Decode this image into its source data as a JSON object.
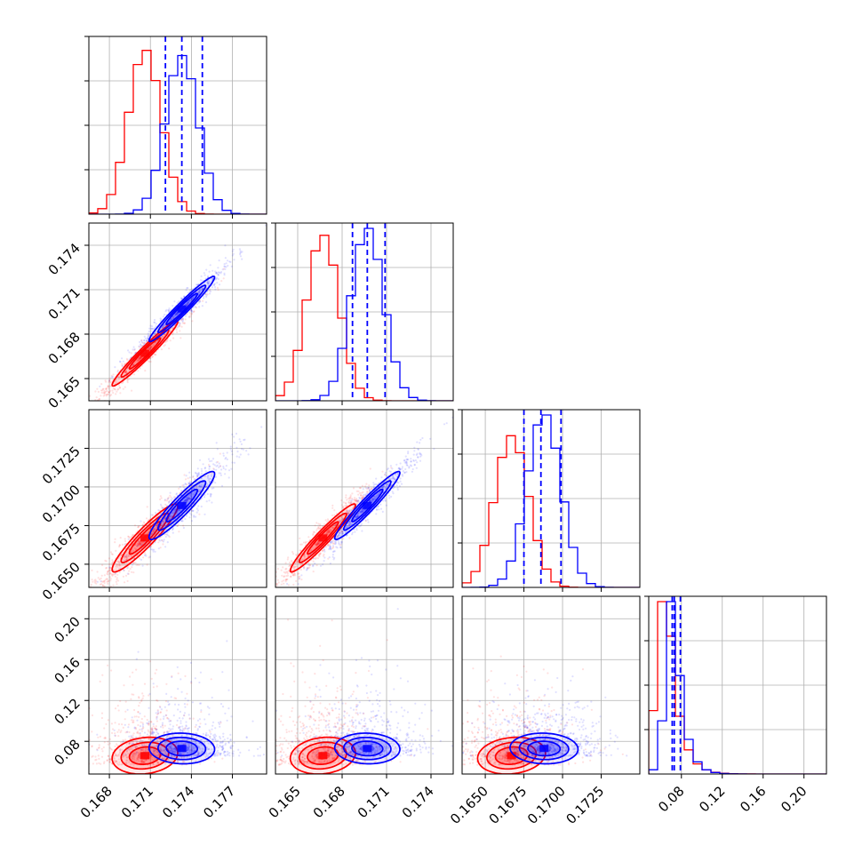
{
  "chart_data": {
    "type": "corner",
    "layout": "lower-triangle",
    "grid": true,
    "parameters": [
      {
        "range": [
          0.1665,
          0.1795
        ],
        "ticks": [
          {
            "value": 0.168,
            "label": "0.168"
          },
          {
            "value": 0.171,
            "label": "0.171"
          },
          {
            "value": 0.174,
            "label": "0.174"
          },
          {
            "value": 0.177,
            "label": "0.177"
          }
        ]
      },
      {
        "range": [
          0.1635,
          0.1755
        ],
        "ticks": [
          {
            "value": 0.165,
            "label": "0.165"
          },
          {
            "value": 0.168,
            "label": "0.168"
          },
          {
            "value": 0.171,
            "label": "0.171"
          },
          {
            "value": 0.174,
            "label": "0.174"
          }
        ]
      },
      {
        "range": [
          0.1635,
          0.175
        ],
        "ticks": [
          {
            "value": 0.165,
            "label": "0.1650"
          },
          {
            "value": 0.1675,
            "label": "0.1675"
          },
          {
            "value": 0.17,
            "label": "0.1700"
          },
          {
            "value": 0.1725,
            "label": "0.1725"
          }
        ]
      },
      {
        "range": [
          0.048,
          0.222
        ],
        "ticks": [
          {
            "value": 0.08,
            "label": "0.08"
          },
          {
            "value": 0.12,
            "label": "0.12"
          },
          {
            "value": 0.16,
            "label": "0.16"
          },
          {
            "value": 0.2,
            "label": "0.20"
          }
        ]
      }
    ],
    "series": [
      {
        "color": "#ff0000",
        "means": [
          0.1706,
          0.1667,
          0.1667,
          0.066
        ],
        "sigmas": [
          0.0012,
          0.0011,
          0.0011,
          0.009
        ],
        "correlations": {
          "0-1": 0.97,
          "0-2": 0.93,
          "1-2": 0.96,
          "0-3": 0.15,
          "1-3": 0.15,
          "2-3": 0.15
        },
        "hist_peaks": [
          0.95,
          0.96,
          0.88,
          1.0
        ]
      },
      {
        "color": "#0000ff",
        "means": [
          0.1733,
          0.1697,
          0.1688,
          0.073
        ],
        "sigmas": [
          0.0012,
          0.0011,
          0.0011,
          0.0075
        ],
        "correlations": {
          "0-1": 0.97,
          "0-2": 0.93,
          "1-2": 0.96,
          "0-3": -0.05,
          "1-3": -0.05,
          "2-3": -0.05
        },
        "hist_peaks": [
          0.92,
          1.0,
          1.0,
          1.0
        ],
        "quantiles": [
          [
            0.1721,
            0.1733,
            0.1748
          ],
          [
            0.1687,
            0.1697,
            0.1709
          ],
          [
            0.1675,
            0.1686,
            0.1699
          ],
          [
            0.071,
            0.073,
            0.079
          ]
        ]
      }
    ]
  }
}
